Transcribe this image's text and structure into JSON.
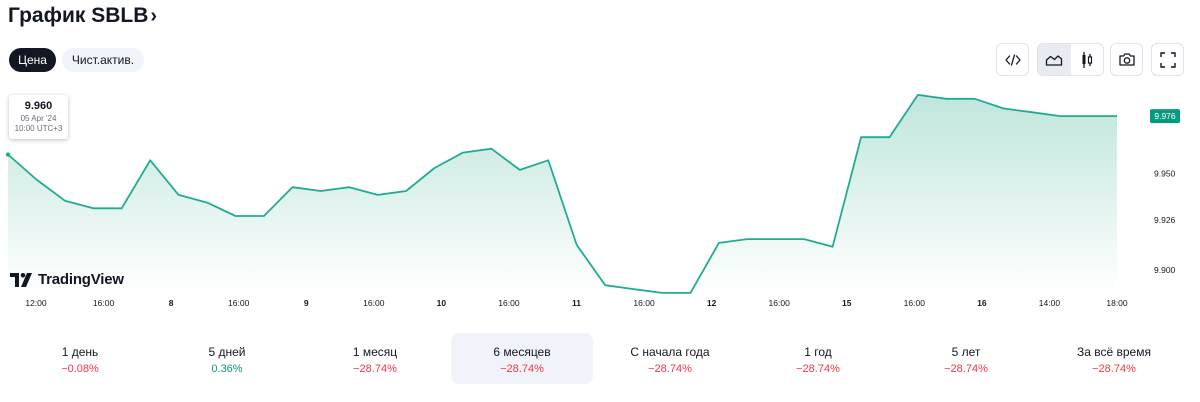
{
  "header": {
    "title": "График SBLB",
    "chevron": "›"
  },
  "tabs": [
    {
      "label": "Цена",
      "active": true
    },
    {
      "label": "Чист.актив.",
      "active": false
    }
  ],
  "toolbar": {
    "icons": [
      "code-icon",
      "area-chart-icon",
      "candlestick-icon",
      "camera-icon",
      "fullscreen-icon"
    ],
    "selected": "area-chart-icon"
  },
  "tooltip": {
    "value": "9.960",
    "date": "05 Apr '24",
    "time": "10:00 UTC+3"
  },
  "logo": {
    "text": "TradingView"
  },
  "colors": {
    "line": "#22ab94",
    "fill_top": "#bfe6dc",
    "fill_bottom": "#ffffff",
    "last_price_bg": "#089981",
    "negative": "#f23645",
    "positive": "#089981"
  },
  "chart_data": {
    "type": "area",
    "x_tick_labels": [
      "12:00",
      "16:00",
      "8",
      "16:00",
      "9",
      "16:00",
      "10",
      "16:00",
      "11",
      "16:00",
      "12",
      "16:00",
      "15",
      "16:00",
      "16",
      "14:00",
      "18:00"
    ],
    "y_tick_labels": [
      "9.950",
      "9.926",
      "9.900"
    ],
    "y_ticks": [
      9.95,
      9.926,
      9.9
    ],
    "ylim": [
      9.889,
      9.992
    ],
    "last_price": "9.976",
    "series": [
      {
        "values": [
          9.96,
          9.947,
          9.936,
          9.932,
          9.932,
          9.957,
          9.939,
          9.935,
          9.928,
          9.928,
          9.943,
          9.941,
          9.943,
          9.939,
          9.941,
          9.953,
          9.961,
          9.963,
          9.952,
          9.957,
          9.913,
          9.892,
          9.89,
          9.888,
          9.888,
          9.914,
          9.916,
          9.916,
          9.916,
          9.912,
          9.969,
          9.969,
          9.991,
          9.989,
          9.989,
          9.984,
          9.982,
          9.98,
          9.98,
          9.98
        ]
      }
    ],
    "grid": false,
    "legend": "none"
  },
  "periods": [
    {
      "label": "1 день",
      "value": "−0.08%",
      "sign": "neg"
    },
    {
      "label": "5 дней",
      "value": "0.36%",
      "sign": "pos"
    },
    {
      "label": "1 месяц",
      "value": "−28.74%",
      "sign": "neg"
    },
    {
      "label": "6 месяцев",
      "value": "−28.74%",
      "sign": "neg",
      "selected": true
    },
    {
      "label": "С начала года",
      "value": "−28.74%",
      "sign": "neg"
    },
    {
      "label": "1 год",
      "value": "−28.74%",
      "sign": "neg"
    },
    {
      "label": "5 лет",
      "value": "−28.74%",
      "sign": "neg"
    },
    {
      "label": "За всё время",
      "value": "−28.74%",
      "sign": "neg"
    }
  ]
}
